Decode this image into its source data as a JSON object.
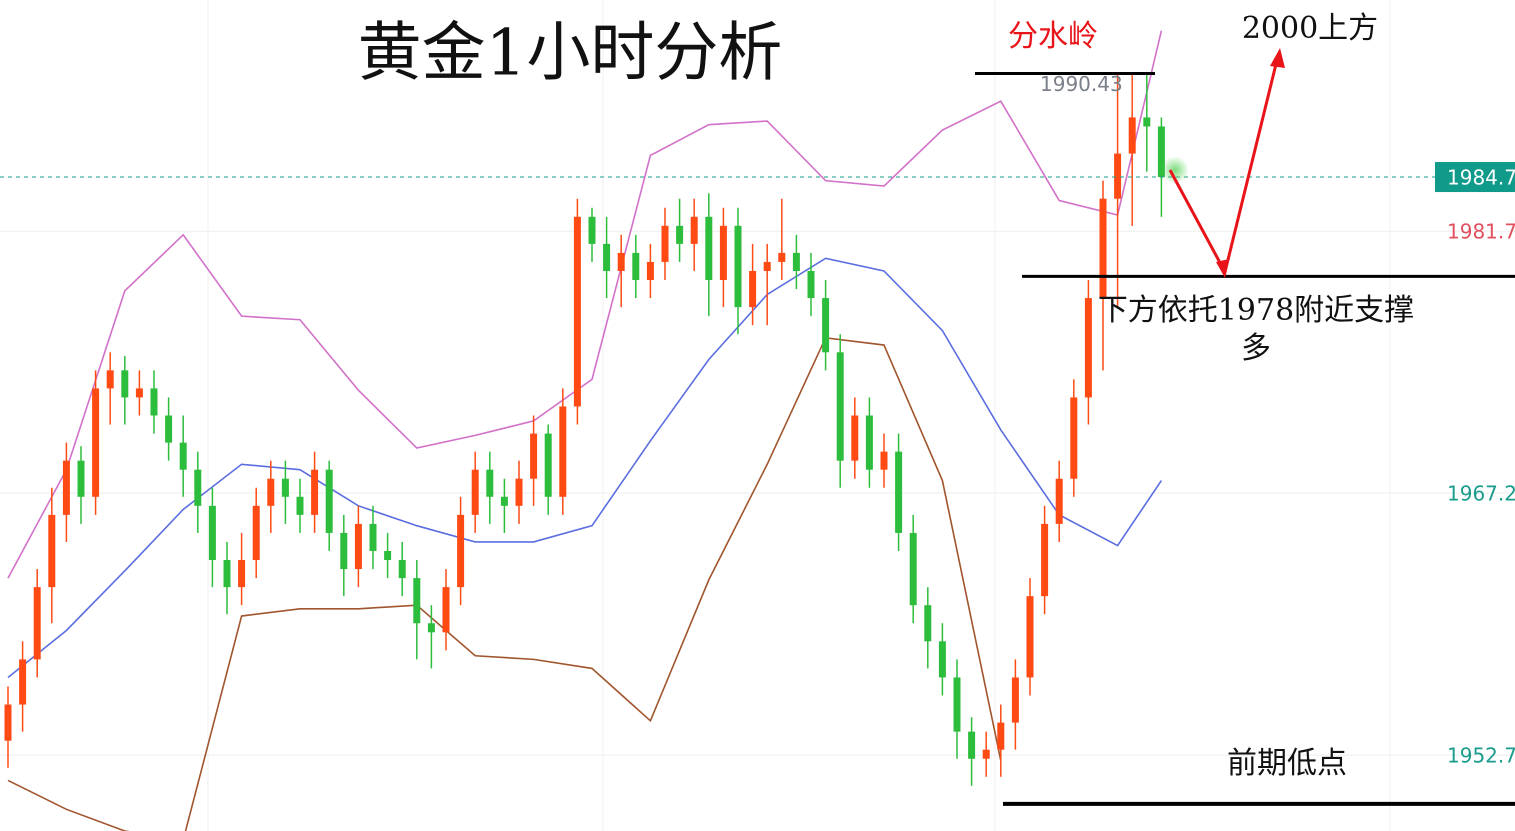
{
  "chart_data": {
    "type": "candlestick",
    "title": "黄金1小时分析",
    "ylim": [
      1948.5,
      1994.5
    ],
    "yticks": [
      1952.7,
      1967.2,
      1981.7
    ],
    "grid": true,
    "up_color": "#ff4a14",
    "down_color": "#2dbd3c",
    "open": [
      1953.5,
      1955.5,
      1958,
      1962,
      1966,
      1969,
      1967,
      1973,
      1974,
      1972.5,
      1973,
      1971.5,
      1970,
      1968.5,
      1966.5,
      1963.5,
      1962,
      1963.5,
      1966.5,
      1968,
      1967,
      1966,
      1968.5,
      1965,
      1963,
      1965.5,
      1964,
      1963.5,
      1962.5,
      1960,
      1959.5,
      1962,
      1966,
      1968.5,
      1967,
      1966.5,
      1968,
      1970.5,
      1967,
      1972,
      1982.5,
      1981,
      1979.5,
      1980.5,
      1979,
      1980,
      1982,
      1981,
      1982.5,
      1979,
      1982,
      1977.5,
      1979.5,
      1980,
      1980.5,
      1979.5,
      1978,
      1975,
      1969,
      1971.5,
      1968.5,
      1969.5,
      1965,
      1961,
      1959,
      1957,
      1954,
      1952.5,
      1953,
      1954.5,
      1957,
      1961.5,
      1965.5,
      1968,
      1972.5,
      1978,
      1983.5,
      1986,
      1988,
      1987.5
    ],
    "high": [
      1956.5,
      1959,
      1963,
      1967.5,
      1970,
      1969.8,
      1974,
      1975,
      1974.8,
      1974,
      1974,
      1972.5,
      1971.5,
      1969.5,
      1967.5,
      1964.5,
      1965,
      1967.5,
      1969,
      1969,
      1968,
      1969.5,
      1969,
      1966,
      1966.5,
      1966.5,
      1965,
      1964.5,
      1963.5,
      1961,
      1963,
      1967,
      1969.5,
      1969.5,
      1968,
      1969,
      1971.5,
      1971,
      1973,
      1983.5,
      1983,
      1982.5,
      1981.5,
      1981.5,
      1981,
      1983,
      1983.5,
      1983.5,
      1983.8,
      1983,
      1983,
      1981,
      1981,
      1983.5,
      1981.5,
      1980.5,
      1979,
      1976,
      1972.5,
      1972.5,
      1970.5,
      1970.5,
      1966,
      1962,
      1960,
      1958,
      1954.8,
      1954,
      1955.5,
      1958,
      1962.5,
      1966.5,
      1969,
      1973.5,
      1979,
      1984.5,
      1990.5,
      1990.4,
      1990.4,
      1988
    ],
    "low": [
      1952,
      1954,
      1957,
      1960,
      1964.5,
      1965.5,
      1966,
      1971,
      1971,
      1971.5,
      1970.5,
      1969,
      1967,
      1965,
      1962,
      1960.5,
      1961,
      1962.5,
      1965,
      1965.5,
      1965,
      1965,
      1964,
      1961.5,
      1962,
      1963,
      1962.5,
      1961.5,
      1958,
      1957.5,
      1958.5,
      1961,
      1965,
      1965.5,
      1965,
      1965.5,
      1966.5,
      1966,
      1966,
      1971,
      1980,
      1978,
      1977.5,
      1978,
      1978,
      1979,
      1980,
      1979.5,
      1977,
      1977.5,
      1976,
      1976.5,
      1976.5,
      1979,
      1978.5,
      1977,
      1974,
      1967.5,
      1968,
      1967.5,
      1967.5,
      1964,
      1960,
      1957.5,
      1956,
      1952.5,
      1951,
      1951.5,
      1951.5,
      1953,
      1956,
      1960.5,
      1964.5,
      1967,
      1971,
      1974,
      1977.5,
      1982,
      1985,
      1982.5
    ],
    "close": [
      1955.5,
      1958,
      1962,
      1966,
      1969,
      1967,
      1973,
      1974,
      1972.5,
      1973,
      1971.5,
      1970,
      1968.5,
      1966.5,
      1963.5,
      1962,
      1963.5,
      1966.5,
      1968,
      1967,
      1966,
      1968.5,
      1965,
      1963,
      1965.5,
      1964,
      1963.5,
      1962.5,
      1960,
      1959.5,
      1962,
      1966,
      1968.5,
      1967,
      1966.5,
      1968,
      1970.5,
      1967,
      1972,
      1982.5,
      1981,
      1979.5,
      1980.5,
      1979,
      1980,
      1982,
      1981,
      1982.5,
      1979,
      1982,
      1977.5,
      1979.5,
      1980,
      1980.5,
      1979.5,
      1978,
      1975,
      1969,
      1971.5,
      1968.5,
      1969.5,
      1965,
      1961,
      1959,
      1957,
      1954,
      1952.5,
      1953,
      1954.5,
      1957,
      1961.5,
      1965.5,
      1968,
      1972.5,
      1978,
      1983.5,
      1986,
      1988,
      1987.5,
      1984.7
    ],
    "band_index": [
      0,
      4,
      8,
      12,
      16,
      20,
      24,
      28,
      32,
      36,
      40,
      44,
      48,
      52,
      56,
      60,
      64,
      68,
      72,
      76,
      79
    ],
    "bands": [
      {
        "color": "#d271c9",
        "values": [
          1962.5,
          1968.5,
          1978.4,
          1981.5,
          1977.0,
          1976.8,
          1972.9,
          1969.7,
          1970.4,
          1971.2,
          1973.5,
          1985.9,
          1987.6,
          1987.8,
          1984.5,
          1984.2,
          1987.3,
          1988.9,
          1983.4,
          1982.6,
          1992.8
        ]
      },
      {
        "color": "#5b6ee0",
        "values": [
          1957.0,
          1959.6,
          1962.9,
          1966.3,
          1968.8,
          1968.5,
          1966.5,
          1965.4,
          1964.5,
          1964.5,
          1965.4,
          1970.1,
          1974.6,
          1978.2,
          1980.2,
          1979.5,
          1976.2,
          1970.7,
          1966.0,
          1964.3,
          1967.9
        ]
      },
      {
        "color": "#a0552d",
        "values": [
          1951.3,
          1949.7,
          1948.5,
          1948.0,
          1960.4,
          1960.8,
          1960.8,
          1961.0,
          1958.2,
          1958.0,
          1957.5,
          1954.6,
          1962.4,
          1968.8,
          1975.8,
          1975.4,
          1967.9,
          1952.4,
          null,
          null,
          null
        ]
      }
    ],
    "current_price": 1984.7,
    "watershed_label": "分水岭",
    "watershed_level": 1990.43,
    "support_level": 1979.2,
    "support_text": "下方依托1978附近支撑",
    "support_text2": "多",
    "low_level": 1950.0,
    "low_text": "前期低点",
    "target_text": "2000上方"
  }
}
